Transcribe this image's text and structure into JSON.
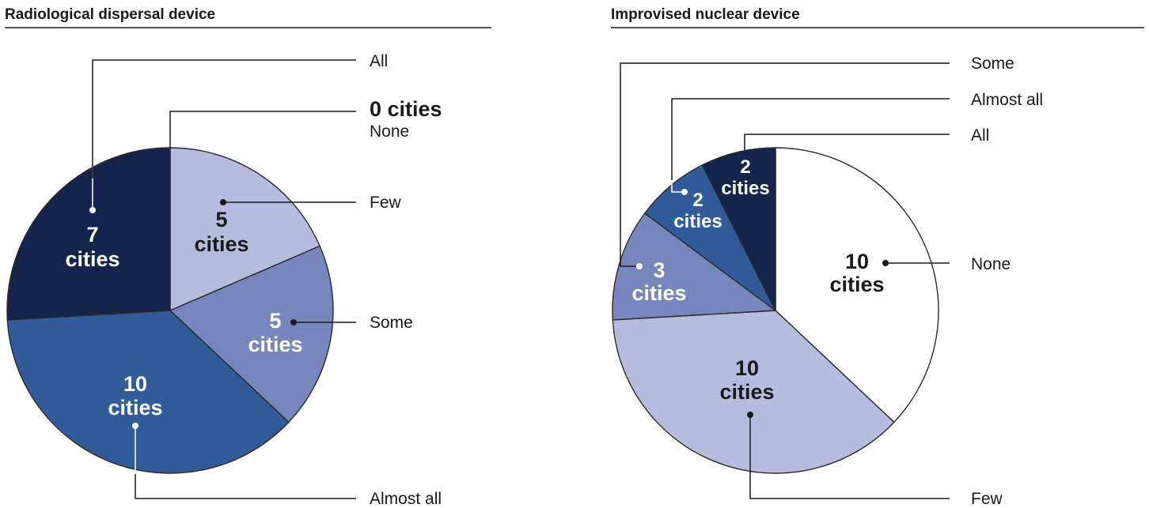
{
  "chart_data": [
    {
      "type": "pie",
      "title": "Radiological dispersal device",
      "slices": [
        {
          "category": "None",
          "value": 0,
          "count_label": "0 cities",
          "color": "#ffffff"
        },
        {
          "category": "Few",
          "value": 5,
          "count_label": "5",
          "unit_label": "cities",
          "color": "#b6bcdd"
        },
        {
          "category": "Some",
          "value": 5,
          "count_label": "5",
          "unit_label": "cities",
          "color": "#7786bd"
        },
        {
          "category": "Almost all",
          "value": 10,
          "count_label": "10",
          "unit_label": "cities",
          "color": "#325b99"
        },
        {
          "category": "All",
          "value": 7,
          "count_label": "7",
          "unit_label": "cities",
          "color": "#14244a"
        }
      ]
    },
    {
      "type": "pie",
      "title": "Improvised nuclear device",
      "slices": [
        {
          "category": "None",
          "value": 10,
          "count_label": "10",
          "unit_label": "cities",
          "color": "#ffffff"
        },
        {
          "category": "Few",
          "value": 10,
          "count_label": "10",
          "unit_label": "cities",
          "color": "#b6bcdd"
        },
        {
          "category": "Some",
          "value": 3,
          "count_label": "3",
          "unit_label": "cities",
          "color": "#7786bd"
        },
        {
          "category": "Almost all",
          "value": 2,
          "count_label": "2",
          "unit_label": "cities",
          "color": "#325b99"
        },
        {
          "category": "All",
          "value": 2,
          "count_label": "2",
          "unit_label": "cities",
          "color": "#14244a"
        }
      ]
    }
  ]
}
